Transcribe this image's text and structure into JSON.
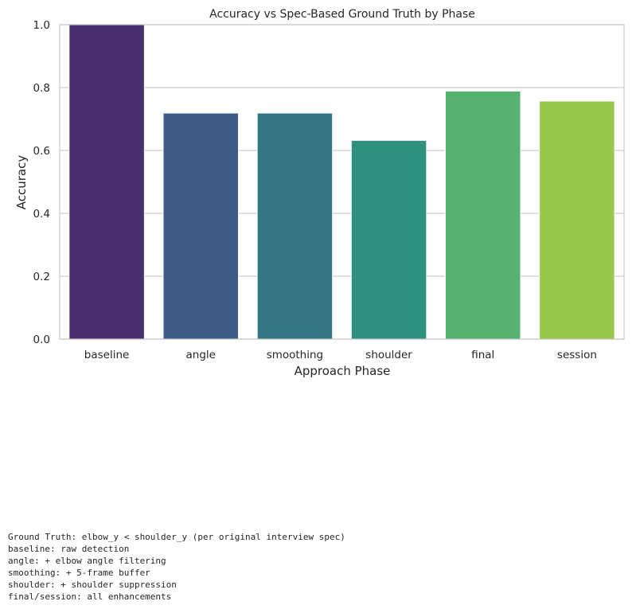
{
  "chart_data": {
    "type": "bar",
    "title": "Accuracy vs Spec-Based Ground Truth by Phase",
    "xlabel": "Approach Phase",
    "ylabel": "Accuracy",
    "categories": [
      "baseline",
      "angle",
      "smoothing",
      "shoulder",
      "final",
      "session"
    ],
    "values": [
      1.0,
      0.719,
      0.719,
      0.632,
      0.789,
      0.757
    ],
    "ylim": [
      0,
      1.0
    ],
    "yticks": [
      "0.0",
      "0.2",
      "0.4",
      "0.6",
      "0.8",
      "1.0"
    ],
    "grid": true,
    "bar_colors": [
      "#482f6f",
      "#3e5b85",
      "#347681",
      "#2e907d",
      "#57b271",
      "#98c84c"
    ]
  },
  "footnote": {
    "lines": [
      "Ground Truth: elbow_y < shoulder_y (per original interview spec)",
      "baseline: raw detection",
      "angle: + elbow angle filtering",
      "smoothing: + 5-frame buffer",
      "shoulder: + shoulder suppression",
      "final/session: all enhancements"
    ]
  }
}
